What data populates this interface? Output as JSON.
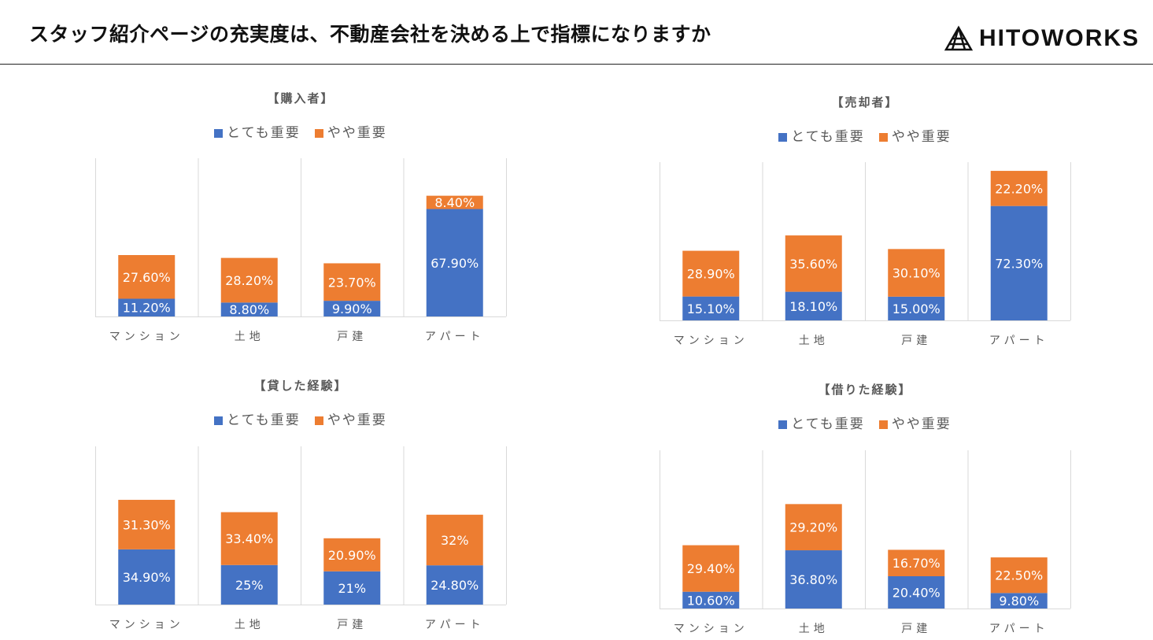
{
  "header": {
    "title": "スタッフ紹介ページの充実度は、不動産会社を決める上で指標になりますか",
    "logo": "HITOWORKS"
  },
  "colors": {
    "very": "#4472C4",
    "somewhat": "#ED7D31",
    "grid": "#D9D9D9",
    "axis_text": "#595959"
  },
  "chart_data": [
    {
      "type": "bar",
      "stacked": true,
      "title": "【購入者】",
      "categories": [
        "マンション",
        "土地",
        "戸建",
        "アパート"
      ],
      "ylim": [
        0,
        100
      ],
      "series": [
        {
          "name": "とても重要",
          "values": [
            11.2,
            8.8,
            9.9,
            67.9
          ],
          "labels": [
            "11.20%",
            "8.80%",
            "9.90%",
            "67.90%"
          ]
        },
        {
          "name": "やや重要",
          "values": [
            27.6,
            28.2,
            23.7,
            8.4
          ],
          "labels": [
            "27.60%",
            "28.20%",
            "23.70%",
            "8.40%"
          ]
        }
      ],
      "legend": "top"
    },
    {
      "type": "bar",
      "stacked": true,
      "title": "【売却者】",
      "categories": [
        "マンション",
        "土地",
        "戸建",
        "アパート"
      ],
      "ylim": [
        0,
        100
      ],
      "series": [
        {
          "name": "とても重要",
          "values": [
            15.1,
            18.1,
            15.0,
            72.3
          ],
          "labels": [
            "15.10%",
            "18.10%",
            "15.00%",
            "72.30%"
          ]
        },
        {
          "name": "やや重要",
          "values": [
            28.9,
            35.6,
            30.1,
            22.2
          ],
          "labels": [
            "28.90%",
            "35.60%",
            "30.10%",
            "22.20%"
          ]
        }
      ],
      "legend": "top"
    },
    {
      "type": "bar",
      "stacked": true,
      "title": "【貸した経験】",
      "categories": [
        "マンション",
        "土地",
        "戸建",
        "アパート"
      ],
      "ylim": [
        0,
        100
      ],
      "series": [
        {
          "name": "とても重要",
          "values": [
            34.9,
            25,
            21,
            24.8
          ],
          "labels": [
            "34.90%",
            "25%",
            "21%",
            "24.80%"
          ]
        },
        {
          "name": "やや重要",
          "values": [
            31.3,
            33.4,
            20.9,
            32
          ],
          "labels": [
            "31.30%",
            "33.40%",
            "20.90%",
            "32%"
          ]
        }
      ],
      "legend": "top"
    },
    {
      "type": "bar",
      "stacked": true,
      "title": "【借りた経験】",
      "categories": [
        "マンション",
        "土地",
        "戸建",
        "アパート"
      ],
      "ylim": [
        0,
        100
      ],
      "series": [
        {
          "name": "とても重要",
          "values": [
            10.6,
            36.8,
            20.4,
            9.8
          ],
          "labels": [
            "10.60%",
            "36.80%",
            "20.40%",
            "9.80%"
          ]
        },
        {
          "name": "やや重要",
          "values": [
            29.4,
            29.2,
            16.7,
            22.5
          ],
          "labels": [
            "29.40%",
            "29.20%",
            "16.70%",
            "22.50%"
          ]
        }
      ],
      "legend": "top"
    }
  ]
}
